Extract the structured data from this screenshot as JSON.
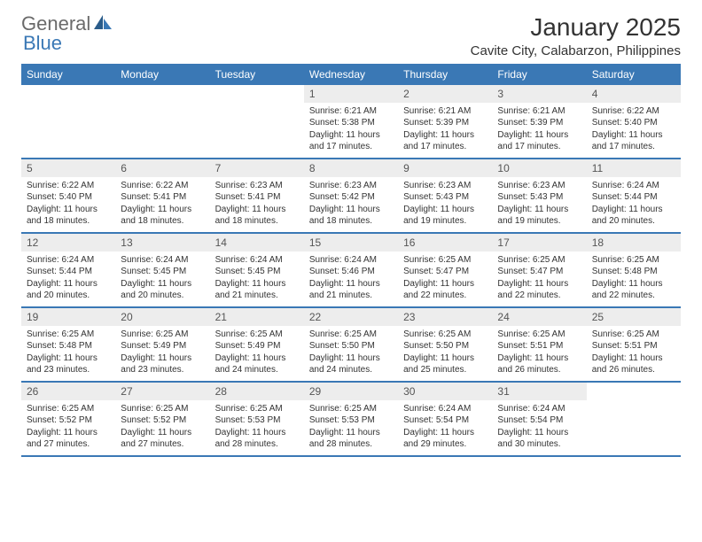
{
  "logo": {
    "word1": "General",
    "word2": "Blue"
  },
  "title": "January 2025",
  "location": "Cavite City, Calabarzon, Philippines",
  "colors": {
    "accent": "#3a78b5",
    "daynum_bg": "#ededed",
    "text": "#333333",
    "logo_gray": "#6a6a6a"
  },
  "dayHeaders": [
    "Sunday",
    "Monday",
    "Tuesday",
    "Wednesday",
    "Thursday",
    "Friday",
    "Saturday"
  ],
  "weeks": [
    [
      {
        "n": "",
        "sr": "",
        "ss": "",
        "dl": ""
      },
      {
        "n": "",
        "sr": "",
        "ss": "",
        "dl": ""
      },
      {
        "n": "",
        "sr": "",
        "ss": "",
        "dl": ""
      },
      {
        "n": "1",
        "sr": "Sunrise: 6:21 AM",
        "ss": "Sunset: 5:38 PM",
        "dl": "Daylight: 11 hours and 17 minutes."
      },
      {
        "n": "2",
        "sr": "Sunrise: 6:21 AM",
        "ss": "Sunset: 5:39 PM",
        "dl": "Daylight: 11 hours and 17 minutes."
      },
      {
        "n": "3",
        "sr": "Sunrise: 6:21 AM",
        "ss": "Sunset: 5:39 PM",
        "dl": "Daylight: 11 hours and 17 minutes."
      },
      {
        "n": "4",
        "sr": "Sunrise: 6:22 AM",
        "ss": "Sunset: 5:40 PM",
        "dl": "Daylight: 11 hours and 17 minutes."
      }
    ],
    [
      {
        "n": "5",
        "sr": "Sunrise: 6:22 AM",
        "ss": "Sunset: 5:40 PM",
        "dl": "Daylight: 11 hours and 18 minutes."
      },
      {
        "n": "6",
        "sr": "Sunrise: 6:22 AM",
        "ss": "Sunset: 5:41 PM",
        "dl": "Daylight: 11 hours and 18 minutes."
      },
      {
        "n": "7",
        "sr": "Sunrise: 6:23 AM",
        "ss": "Sunset: 5:41 PM",
        "dl": "Daylight: 11 hours and 18 minutes."
      },
      {
        "n": "8",
        "sr": "Sunrise: 6:23 AM",
        "ss": "Sunset: 5:42 PM",
        "dl": "Daylight: 11 hours and 18 minutes."
      },
      {
        "n": "9",
        "sr": "Sunrise: 6:23 AM",
        "ss": "Sunset: 5:43 PM",
        "dl": "Daylight: 11 hours and 19 minutes."
      },
      {
        "n": "10",
        "sr": "Sunrise: 6:23 AM",
        "ss": "Sunset: 5:43 PM",
        "dl": "Daylight: 11 hours and 19 minutes."
      },
      {
        "n": "11",
        "sr": "Sunrise: 6:24 AM",
        "ss": "Sunset: 5:44 PM",
        "dl": "Daylight: 11 hours and 20 minutes."
      }
    ],
    [
      {
        "n": "12",
        "sr": "Sunrise: 6:24 AM",
        "ss": "Sunset: 5:44 PM",
        "dl": "Daylight: 11 hours and 20 minutes."
      },
      {
        "n": "13",
        "sr": "Sunrise: 6:24 AM",
        "ss": "Sunset: 5:45 PM",
        "dl": "Daylight: 11 hours and 20 minutes."
      },
      {
        "n": "14",
        "sr": "Sunrise: 6:24 AM",
        "ss": "Sunset: 5:45 PM",
        "dl": "Daylight: 11 hours and 21 minutes."
      },
      {
        "n": "15",
        "sr": "Sunrise: 6:24 AM",
        "ss": "Sunset: 5:46 PM",
        "dl": "Daylight: 11 hours and 21 minutes."
      },
      {
        "n": "16",
        "sr": "Sunrise: 6:25 AM",
        "ss": "Sunset: 5:47 PM",
        "dl": "Daylight: 11 hours and 22 minutes."
      },
      {
        "n": "17",
        "sr": "Sunrise: 6:25 AM",
        "ss": "Sunset: 5:47 PM",
        "dl": "Daylight: 11 hours and 22 minutes."
      },
      {
        "n": "18",
        "sr": "Sunrise: 6:25 AM",
        "ss": "Sunset: 5:48 PM",
        "dl": "Daylight: 11 hours and 22 minutes."
      }
    ],
    [
      {
        "n": "19",
        "sr": "Sunrise: 6:25 AM",
        "ss": "Sunset: 5:48 PM",
        "dl": "Daylight: 11 hours and 23 minutes."
      },
      {
        "n": "20",
        "sr": "Sunrise: 6:25 AM",
        "ss": "Sunset: 5:49 PM",
        "dl": "Daylight: 11 hours and 23 minutes."
      },
      {
        "n": "21",
        "sr": "Sunrise: 6:25 AM",
        "ss": "Sunset: 5:49 PM",
        "dl": "Daylight: 11 hours and 24 minutes."
      },
      {
        "n": "22",
        "sr": "Sunrise: 6:25 AM",
        "ss": "Sunset: 5:50 PM",
        "dl": "Daylight: 11 hours and 24 minutes."
      },
      {
        "n": "23",
        "sr": "Sunrise: 6:25 AM",
        "ss": "Sunset: 5:50 PM",
        "dl": "Daylight: 11 hours and 25 minutes."
      },
      {
        "n": "24",
        "sr": "Sunrise: 6:25 AM",
        "ss": "Sunset: 5:51 PM",
        "dl": "Daylight: 11 hours and 26 minutes."
      },
      {
        "n": "25",
        "sr": "Sunrise: 6:25 AM",
        "ss": "Sunset: 5:51 PM",
        "dl": "Daylight: 11 hours and 26 minutes."
      }
    ],
    [
      {
        "n": "26",
        "sr": "Sunrise: 6:25 AM",
        "ss": "Sunset: 5:52 PM",
        "dl": "Daylight: 11 hours and 27 minutes."
      },
      {
        "n": "27",
        "sr": "Sunrise: 6:25 AM",
        "ss": "Sunset: 5:52 PM",
        "dl": "Daylight: 11 hours and 27 minutes."
      },
      {
        "n": "28",
        "sr": "Sunrise: 6:25 AM",
        "ss": "Sunset: 5:53 PM",
        "dl": "Daylight: 11 hours and 28 minutes."
      },
      {
        "n": "29",
        "sr": "Sunrise: 6:25 AM",
        "ss": "Sunset: 5:53 PM",
        "dl": "Daylight: 11 hours and 28 minutes."
      },
      {
        "n": "30",
        "sr": "Sunrise: 6:24 AM",
        "ss": "Sunset: 5:54 PM",
        "dl": "Daylight: 11 hours and 29 minutes."
      },
      {
        "n": "31",
        "sr": "Sunrise: 6:24 AM",
        "ss": "Sunset: 5:54 PM",
        "dl": "Daylight: 11 hours and 30 minutes."
      },
      {
        "n": "",
        "sr": "",
        "ss": "",
        "dl": ""
      }
    ]
  ]
}
